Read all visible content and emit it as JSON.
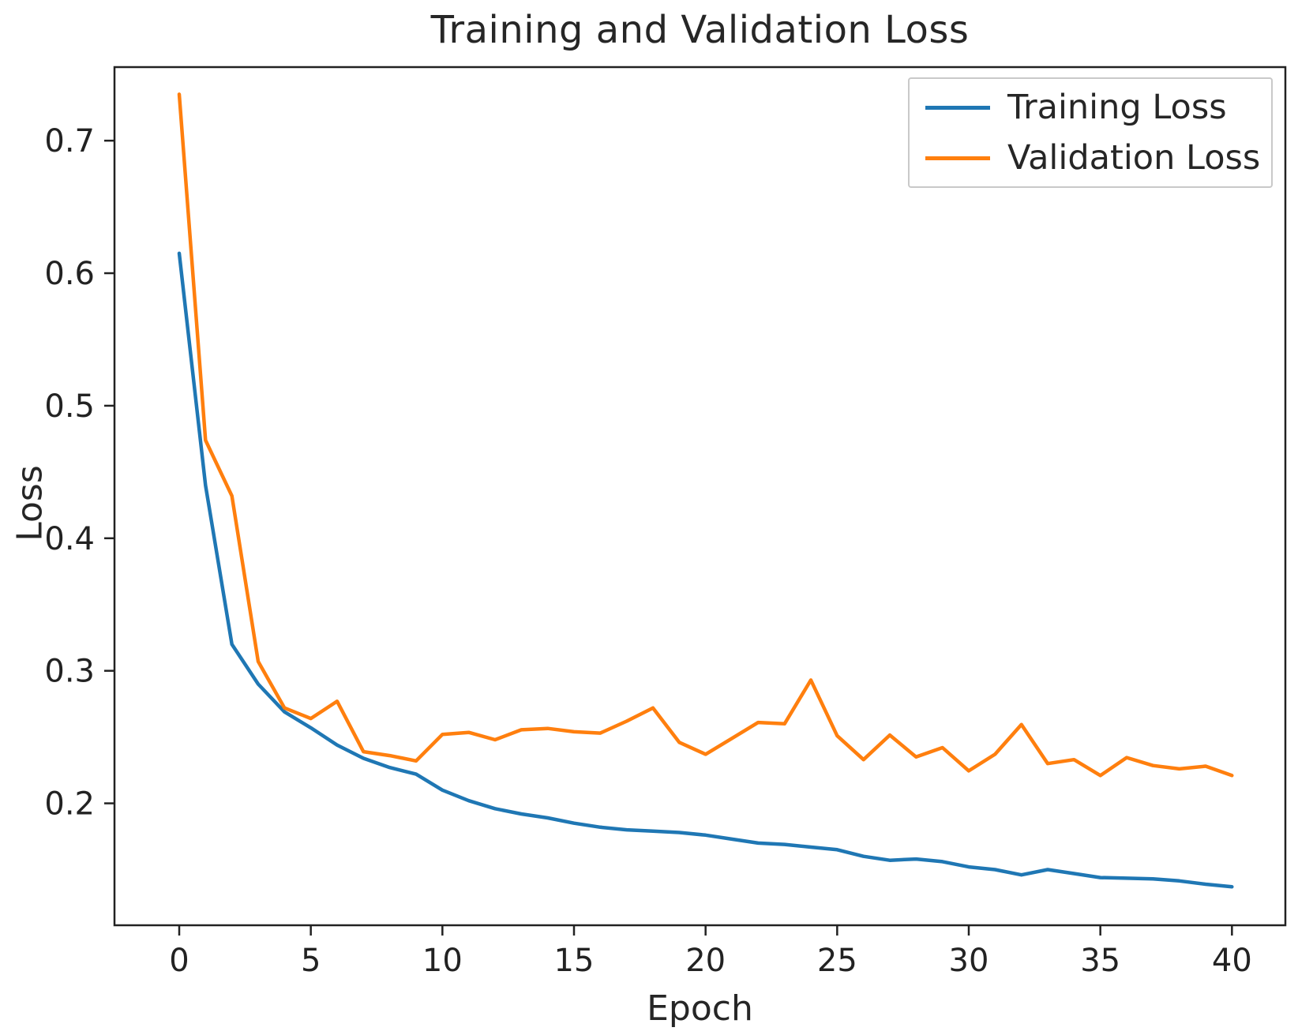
{
  "chart_data": {
    "type": "line",
    "title": "Training and Validation Loss",
    "xlabel": "Epoch",
    "ylabel": "Loss",
    "x": [
      0,
      1,
      2,
      3,
      4,
      5,
      6,
      7,
      8,
      9,
      10,
      11,
      12,
      13,
      14,
      15,
      16,
      17,
      18,
      19,
      20,
      21,
      22,
      23,
      24,
      25,
      26,
      27,
      28,
      29,
      30,
      31,
      32,
      33,
      34,
      35,
      36,
      37,
      38,
      39,
      40
    ],
    "series": [
      {
        "name": "Training Loss",
        "color": "#1f77b4",
        "values": [
          0.615,
          0.44,
          0.32,
          0.29,
          0.269,
          0.257,
          0.244,
          0.234,
          0.227,
          0.222,
          0.21,
          0.202,
          0.196,
          0.192,
          0.189,
          0.185,
          0.182,
          0.18,
          0.179,
          0.178,
          0.176,
          0.173,
          0.17,
          0.169,
          0.167,
          0.165,
          0.16,
          0.157,
          0.158,
          0.156,
          0.152,
          0.15,
          0.146,
          0.15,
          0.147,
          0.144,
          0.1435,
          0.143,
          0.1415,
          0.139,
          0.137
        ]
      },
      {
        "name": "Validation Loss",
        "color": "#ff7f0e",
        "values": [
          0.735,
          0.474,
          0.432,
          0.307,
          0.272,
          0.264,
          0.277,
          0.239,
          0.236,
          0.232,
          0.252,
          0.2535,
          0.248,
          0.2555,
          0.2565,
          0.254,
          0.253,
          0.262,
          0.272,
          0.246,
          0.237,
          0.249,
          0.261,
          0.26,
          0.293,
          0.251,
          0.233,
          0.2515,
          0.235,
          0.242,
          0.2245,
          0.237,
          0.2595,
          0.23,
          0.233,
          0.221,
          0.2345,
          0.2285,
          0.226,
          0.228,
          0.221
        ]
      }
    ],
    "xlim": [
      -2.46,
      42.03
    ],
    "ylim": [
      0.108,
      0.7555
    ],
    "xticks": [
      0,
      5,
      10,
      15,
      20,
      25,
      30,
      35,
      40
    ],
    "xtick_labels": [
      "0",
      "5",
      "10",
      "15",
      "20",
      "25",
      "30",
      "35",
      "40"
    ],
    "yticks": [
      0.2,
      0.3,
      0.4,
      0.5,
      0.6,
      0.7
    ],
    "ytick_labels": [
      "0.2",
      "0.3",
      "0.4",
      "0.5",
      "0.6",
      "0.7"
    ],
    "grid": false,
    "legend_position": "upper right",
    "axis_color": "#222222",
    "background_color": "#ffffff"
  }
}
